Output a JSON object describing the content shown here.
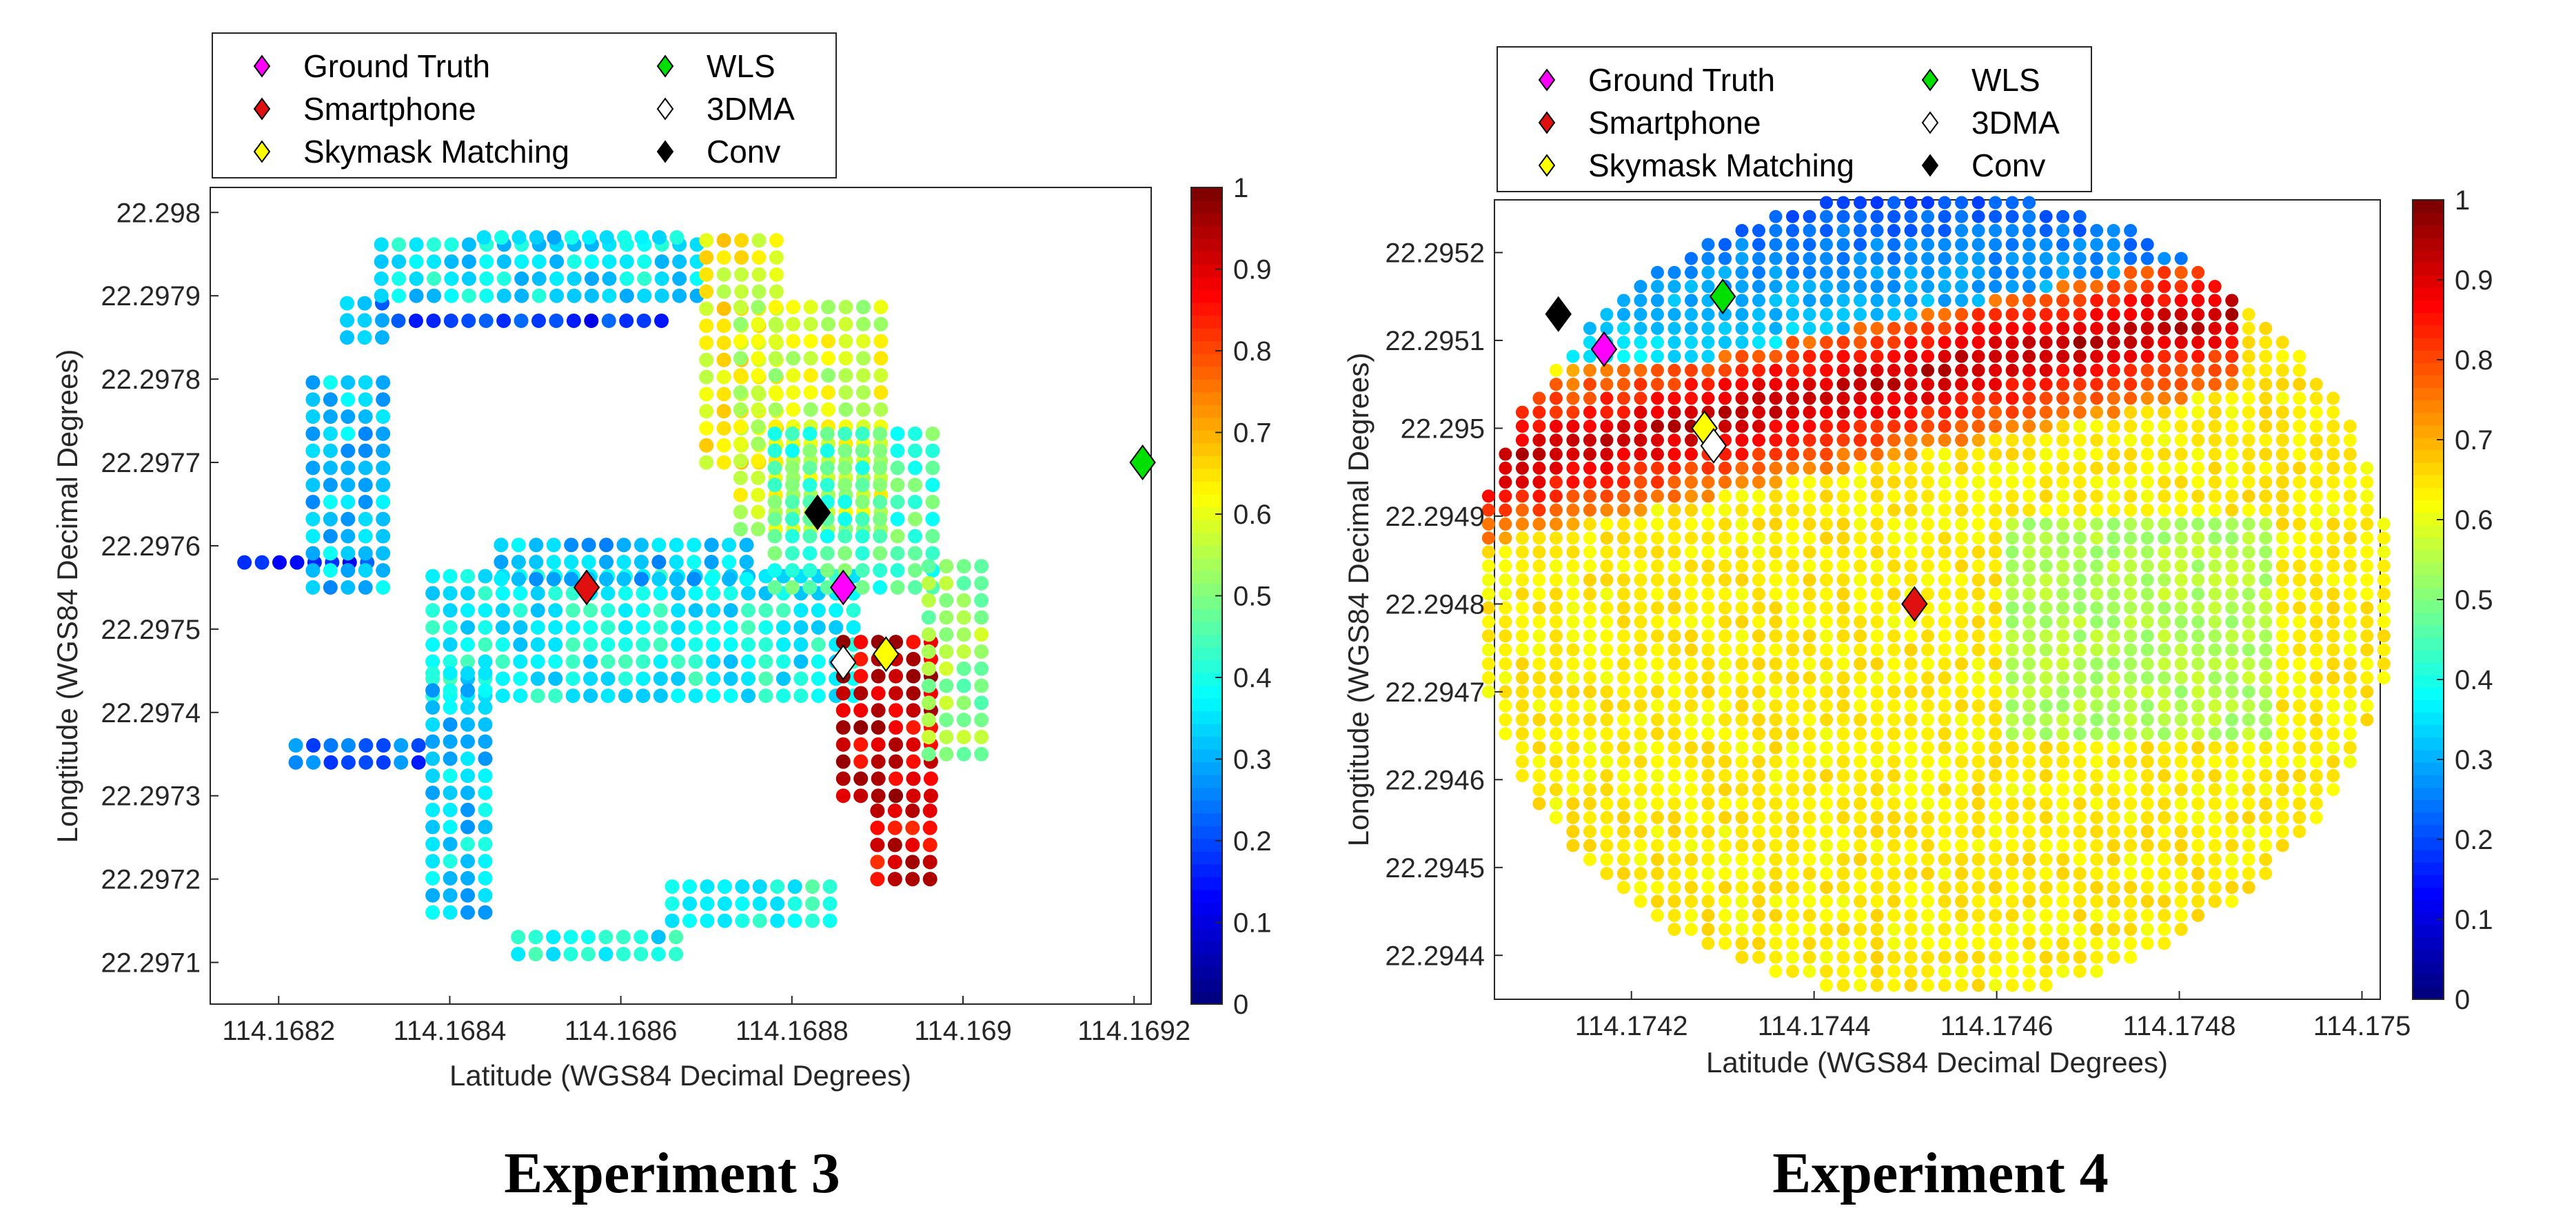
{
  "legend": {
    "items": [
      {
        "label": "Ground Truth",
        "color": "#ff00ff"
      },
      {
        "label": "Smartphone",
        "color": "#e01010"
      },
      {
        "label": "Skymask Matching",
        "color": "#ffff00"
      },
      {
        "label": "WLS",
        "color": "#00e000"
      },
      {
        "label": "3DMA",
        "color": "#ffffff"
      },
      {
        "label": "Conv",
        "color": "#000000"
      }
    ]
  },
  "colorbar": {
    "colormap": "jet",
    "range": [
      0,
      1
    ],
    "ticks": [
      "0",
      "0.1",
      "0.2",
      "0.3",
      "0.4",
      "0.5",
      "0.6",
      "0.7",
      "0.8",
      "0.9",
      "1"
    ]
  },
  "chart_data": [
    {
      "type": "scatter",
      "caption": "Experiment 3",
      "xlabel": "Latitude (WGS84 Decimal Degrees)",
      "ylabel": "Longtitude (WGS84 Decimal Degrees)",
      "xlim": [
        114.16812,
        114.16922
      ],
      "ylim": [
        22.29705,
        22.29803
      ],
      "xticks": [
        114.1682,
        114.1684,
        114.1686,
        114.1688,
        114.169,
        114.1692
      ],
      "xtick_labels": [
        "114.1682",
        "114.1684",
        "114.1686",
        "114.1688",
        "114.169",
        "114.1692"
      ],
      "yticks": [
        22.2971,
        22.2972,
        22.2973,
        22.2974,
        22.2975,
        22.2976,
        22.2977,
        22.2978,
        22.2979,
        22.298
      ],
      "ytick_labels": [
        "22.2971",
        "22.2972",
        "22.2973",
        "22.2974",
        "22.2975",
        "22.2976",
        "22.2977",
        "22.2978",
        "22.2979",
        "22.298"
      ],
      "markers": [
        {
          "label": "Ground Truth",
          "x": 114.16886,
          "y": 22.29755
        },
        {
          "label": "Smartphone",
          "x": 114.16856,
          "y": 22.29755
        },
        {
          "label": "Skymask Matching",
          "x": 114.16891,
          "y": 22.29747
        },
        {
          "label": "WLS",
          "x": 114.16921,
          "y": 22.2977
        },
        {
          "label": "3DMA",
          "x": 114.16886,
          "y": 22.29746
        },
        {
          "label": "Conv",
          "x": 114.16883,
          "y": 22.29764
        }
      ],
      "heatmap_regions": [
        {
          "shape": "rect",
          "x": [
            114.16816,
            114.16832
          ],
          "y": [
            22.29758,
            22.2976
          ],
          "value": 0.17
        },
        {
          "shape": "rect",
          "x": [
            114.16824,
            114.16834
          ],
          "y": [
            22.29755,
            22.2978
          ],
          "value": 0.32
        },
        {
          "shape": "rect",
          "x": [
            114.16828,
            114.16834
          ],
          "y": [
            22.29785,
            22.2979
          ],
          "value": 0.28
        },
        {
          "shape": "rect",
          "x": [
            114.16832,
            114.1687
          ],
          "y": [
            22.2979,
            22.29797
          ],
          "value": 0.36
        },
        {
          "shape": "rect",
          "x": [
            114.16844,
            114.16868
          ],
          "y": [
            22.29797,
            22.29799
          ],
          "value": 0.34
        },
        {
          "shape": "rect",
          "x": [
            114.16834,
            114.16866
          ],
          "y": [
            22.29787,
            22.29789
          ],
          "value": 0.16
        },
        {
          "shape": "rect",
          "x": [
            114.16838,
            114.16888
          ],
          "y": [
            22.29742,
            22.29757
          ],
          "value": 0.38
        },
        {
          "shape": "rect",
          "x": [
            114.16846,
            114.16876
          ],
          "y": [
            22.29756,
            22.29762
          ],
          "value": 0.32
        },
        {
          "shape": "rect",
          "x": [
            114.16838,
            114.16846
          ],
          "y": [
            22.29716,
            22.29745
          ],
          "value": 0.34
        },
        {
          "shape": "rect",
          "x": [
            114.16822,
            114.16838
          ],
          "y": [
            22.29734,
            22.29738
          ],
          "value": 0.22
        },
        {
          "shape": "rect",
          "x": [
            114.16848,
            114.16868
          ],
          "y": [
            22.29711,
            22.29715
          ],
          "value": 0.38
        },
        {
          "shape": "rect",
          "x": [
            114.16866,
            114.16886
          ],
          "y": [
            22.29715,
            22.29721
          ],
          "value": 0.4
        },
        {
          "shape": "rect",
          "x": [
            114.1687,
            114.1688
          ],
          "y": [
            22.2977,
            22.29798
          ],
          "value": 0.62
        },
        {
          "shape": "rect",
          "x": [
            114.16874,
            114.16892
          ],
          "y": [
            22.29762,
            22.2979
          ],
          "value": 0.58
        },
        {
          "shape": "rect",
          "x": [
            114.16878,
            114.16898
          ],
          "y": [
            22.29755,
            22.29775
          ],
          "value": 0.45
        },
        {
          "shape": "rect",
          "x": [
            114.16886,
            114.16897
          ],
          "y": [
            22.2973,
            22.2975
          ],
          "value": 0.92
        },
        {
          "shape": "rect",
          "x": [
            114.1689,
            114.16898
          ],
          "y": [
            22.2972,
            22.2973
          ],
          "value": 0.9
        },
        {
          "shape": "rect",
          "x": [
            114.16896,
            114.16904
          ],
          "y": [
            22.29735,
            22.29758
          ],
          "value": 0.52
        }
      ]
    },
    {
      "type": "scatter",
      "caption": "Experiment 4",
      "xlabel": "Latitude (WGS84 Decimal Degrees)",
      "ylabel": "Longtitude (WGS84 Decimal Degrees)",
      "xlim": [
        114.17405,
        114.17502
      ],
      "ylim": [
        22.29435,
        22.29526
      ],
      "xticks": [
        114.1742,
        114.1744,
        114.1746,
        114.1748,
        114.175
      ],
      "xtick_labels": [
        "114.1742",
        "114.1744",
        "114.1746",
        "114.1748",
        "114.175"
      ],
      "yticks": [
        22.2944,
        22.2945,
        22.2946,
        22.2947,
        22.2948,
        22.2949,
        22.295,
        22.2951,
        22.2952
      ],
      "ytick_labels": [
        "22.2944",
        "22.2945",
        "22.2946",
        "22.2947",
        "22.2948",
        "22.2949",
        "22.295",
        "22.2951",
        "22.2952"
      ],
      "markers": [
        {
          "label": "Ground Truth",
          "x": 114.17417,
          "y": 22.29509
        },
        {
          "label": "Smartphone",
          "x": 114.17451,
          "y": 22.2948
        },
        {
          "label": "Skymask Matching",
          "x": 114.17428,
          "y": 22.295
        },
        {
          "label": "WLS",
          "x": 114.1743,
          "y": 22.29515
        },
        {
          "label": "3DMA",
          "x": 114.17429,
          "y": 22.29498
        },
        {
          "label": "Conv",
          "x": 114.17412,
          "y": 22.29513
        }
      ],
      "heatmap_field": {
        "shape": "disk",
        "center": [
          114.17453,
          22.29481
        ],
        "radius_x": 0.000505,
        "radius_y": 0.00046,
        "background_value": 0.64,
        "red_band": {
          "from": [
            114.1741,
            22.29497
          ],
          "to": [
            114.1748,
            22.29512
          ],
          "value": 0.95
        },
        "cool_rim": {
          "y_above": 22.29508,
          "value": 0.35
        },
        "greenish_area": {
          "x": [
            114.1746,
            114.1749
          ],
          "y": [
            22.29465,
            22.2949
          ],
          "value": 0.55
        }
      }
    }
  ]
}
